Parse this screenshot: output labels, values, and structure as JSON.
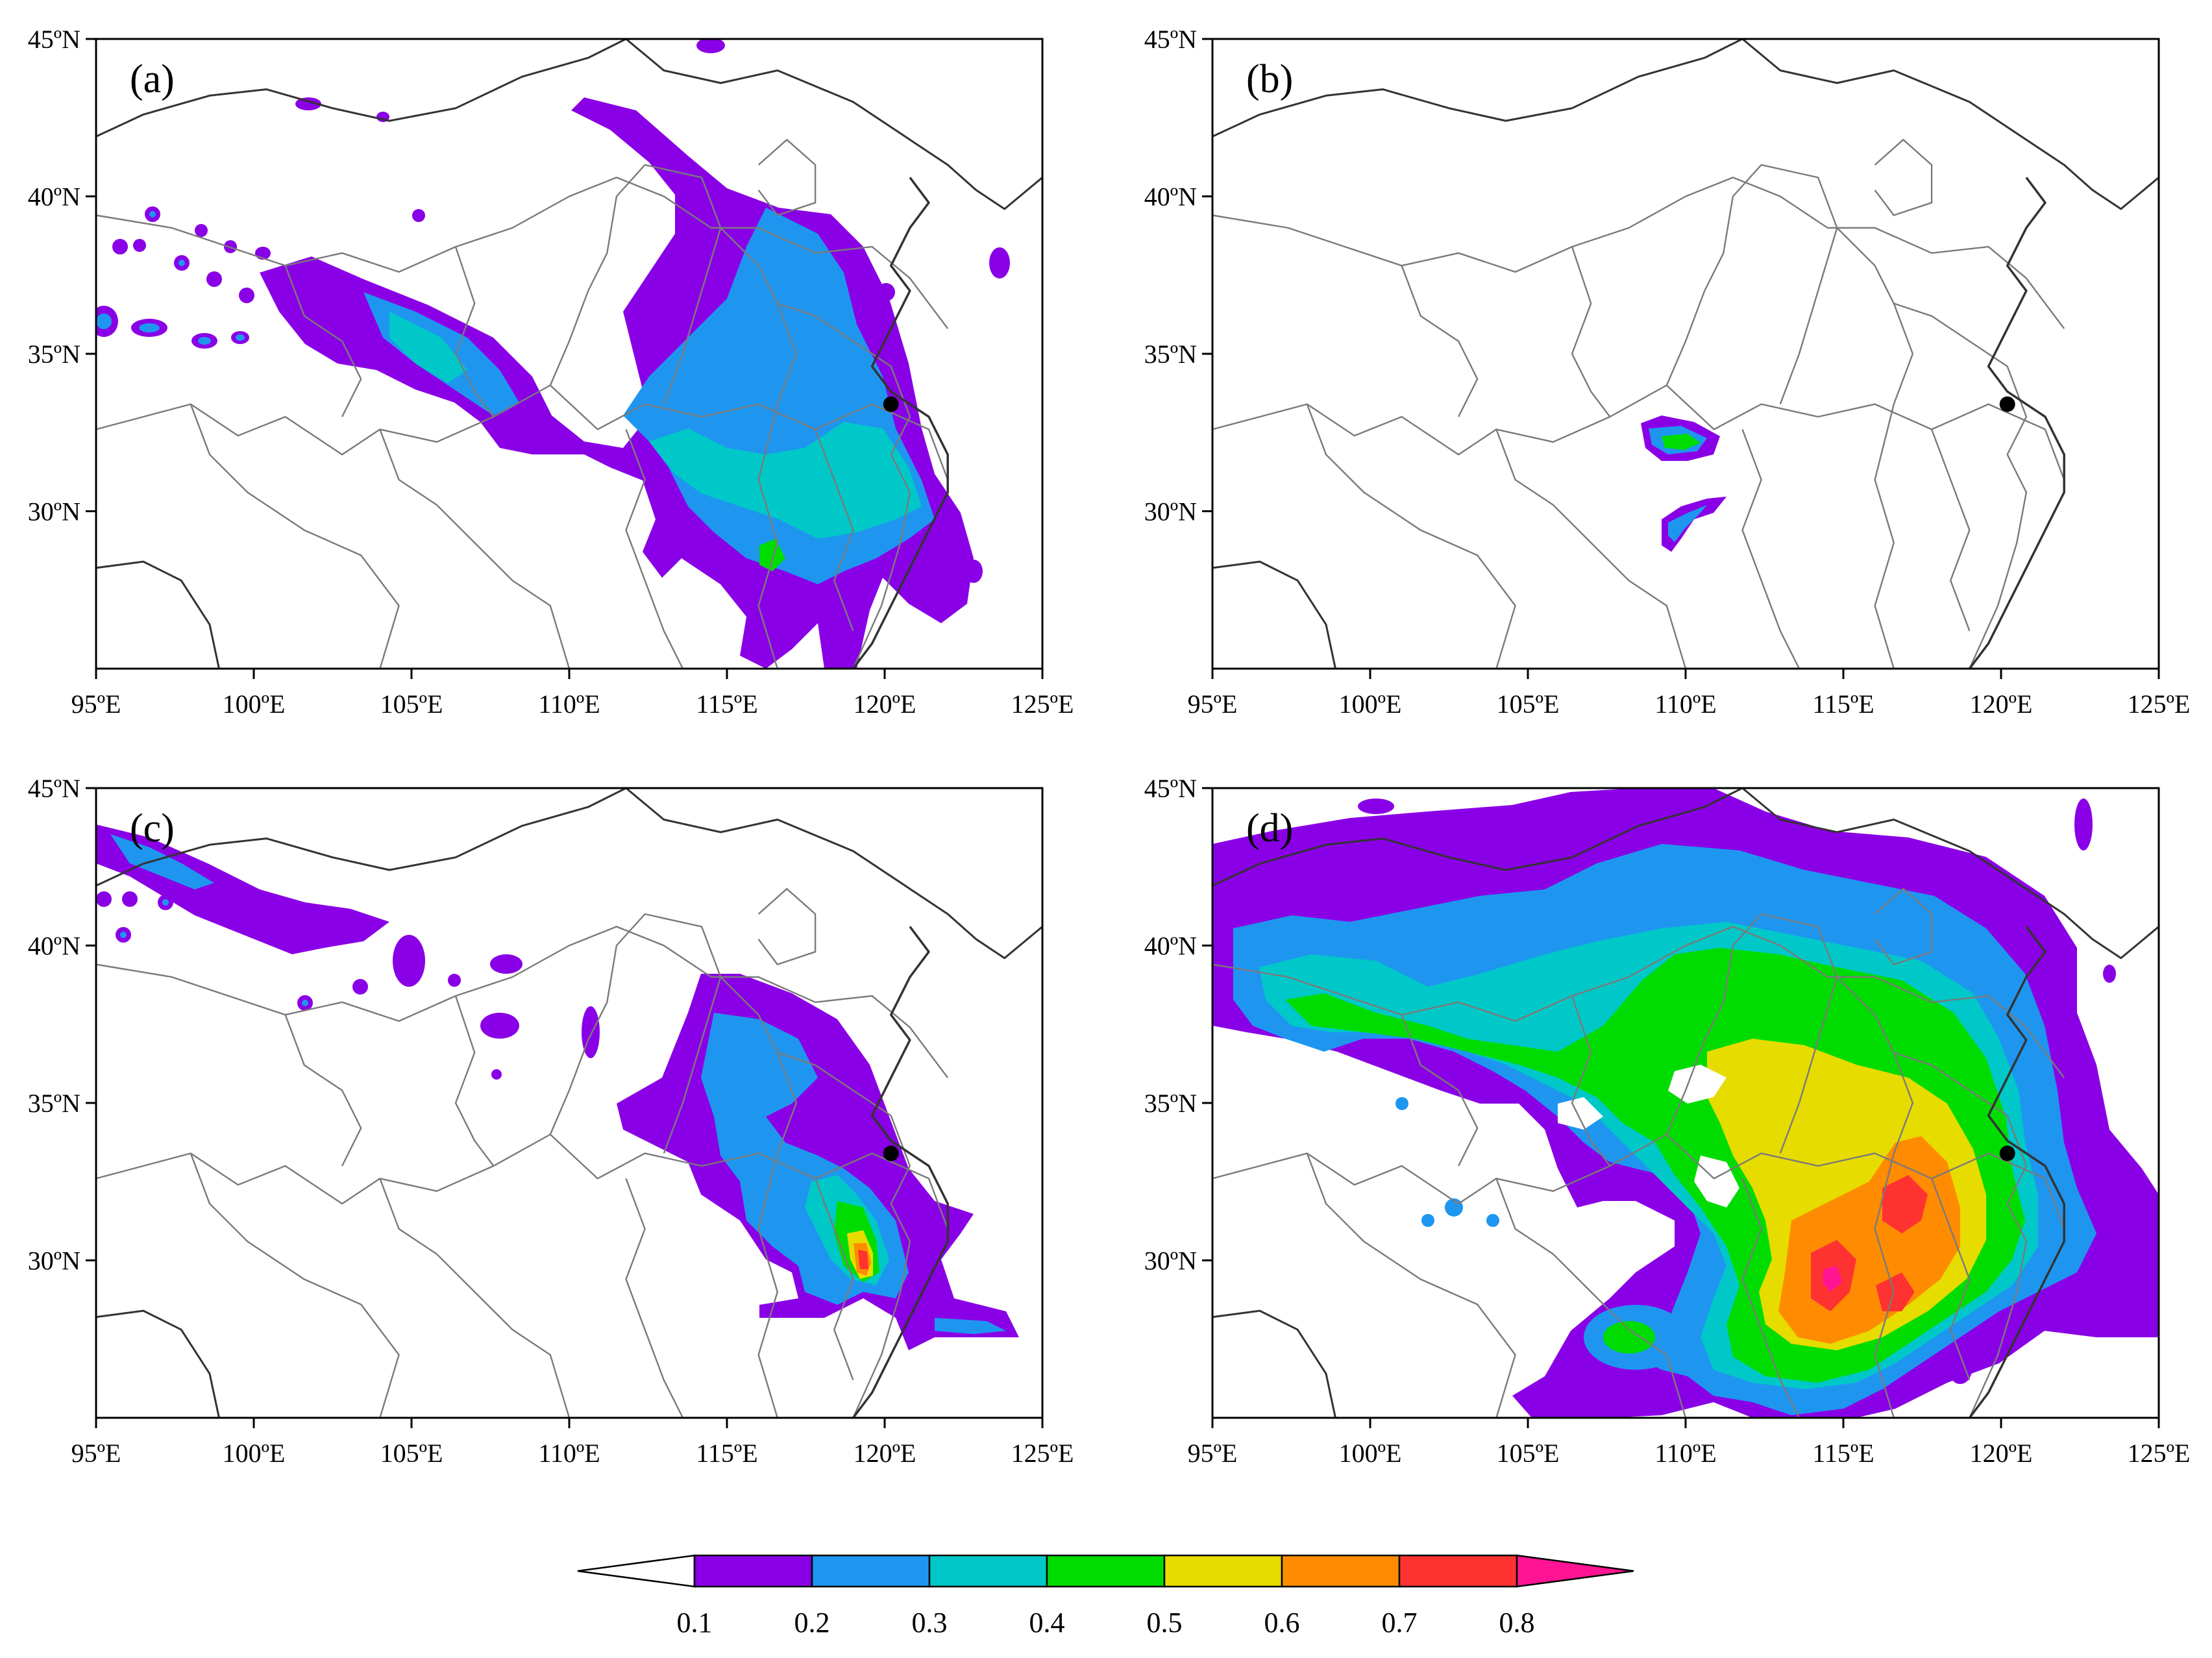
{
  "panels": [
    {
      "id": "a",
      "label": "(a)"
    },
    {
      "id": "b",
      "label": "(b)"
    },
    {
      "id": "c",
      "label": "(c)"
    },
    {
      "id": "d",
      "label": "(d)"
    }
  ],
  "map": {
    "lon_range": [
      95,
      125
    ],
    "lat_range": [
      25,
      45
    ],
    "x_ticks": [
      "95ºE",
      "100ºE",
      "105ºE",
      "110ºE",
      "115ºE",
      "120ºE",
      "125ºE"
    ],
    "y_ticks": [
      "45ºN",
      "40ºN",
      "35ºN",
      "30ºN"
    ],
    "station_marker": {
      "lon": 120.2,
      "lat": 33.4
    }
  },
  "colorbar": {
    "labels": [
      "0.1",
      "0.2",
      "0.3",
      "0.4",
      "0.5",
      "0.6",
      "0.7",
      "0.8"
    ],
    "colors": [
      "#ffffff",
      "#8a00e6",
      "#1e96f0",
      "#00c8c8",
      "#00dc00",
      "#e6dc00",
      "#ff8c00",
      "#ff3232",
      "#ff1493"
    ]
  }
}
